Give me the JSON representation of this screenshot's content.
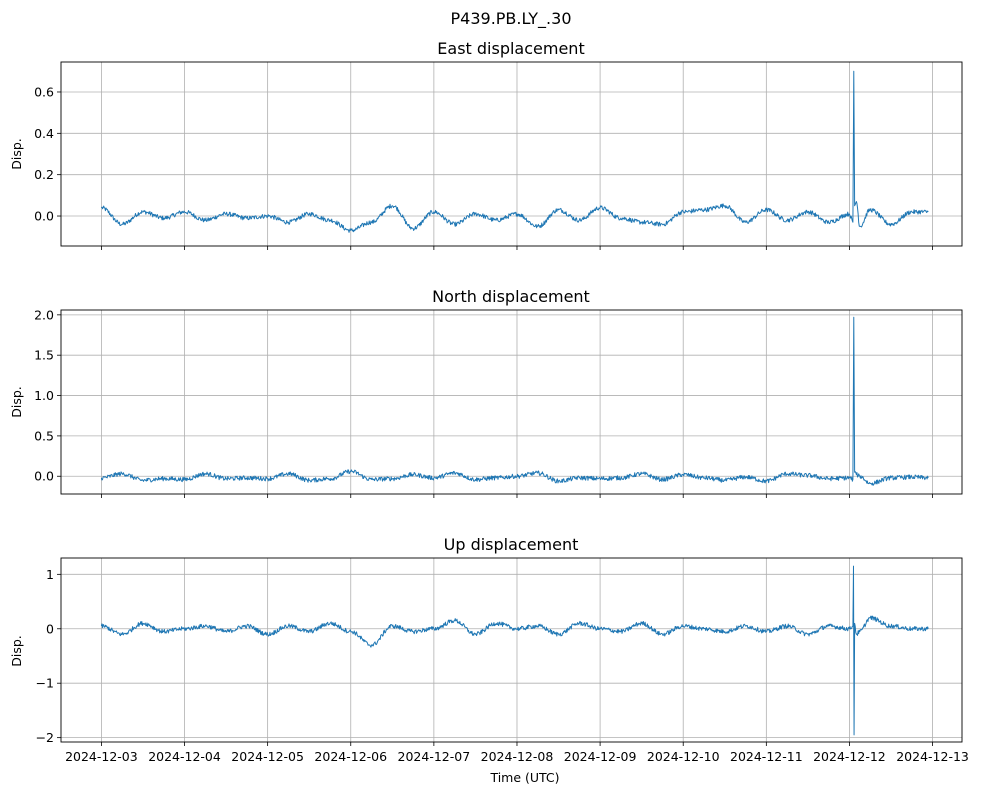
{
  "chart_data": {
    "type": "line",
    "title": "P439.PB.LY_.30",
    "xlabel": "Time (UTC)",
    "x_tick_labels": [
      "2024-12-03",
      "2024-12-04",
      "2024-12-05",
      "2024-12-06",
      "2024-12-07",
      "2024-12-08",
      "2024-12-09",
      "2024-12-10",
      "2024-12-11",
      "2024-12-12",
      "2024-12-13"
    ],
    "x_range": [
      "2024-12-02T12:20",
      "2024-12-13T08:30"
    ],
    "data_x_range": [
      "2024-12-03T00:00",
      "2024-12-12T22:45"
    ],
    "line_color": "#1f77b4",
    "grid": true,
    "panels": [
      {
        "title": "East displacement",
        "ylabel": "Disp.",
        "ylim": [
          -0.145,
          0.745
        ],
        "y_ticks": [
          0.0,
          0.2,
          0.4,
          0.6
        ],
        "y_tick_labels": [
          "0.0",
          "0.2",
          "0.4",
          "0.6"
        ],
        "series": {
          "x": [
            "2024-12-03T00:00",
            "2024-12-03T06:00",
            "2024-12-03T12:00",
            "2024-12-03T18:00",
            "2024-12-04T00:00",
            "2024-12-04T06:00",
            "2024-12-04T12:00",
            "2024-12-04T18:00",
            "2024-12-05T00:00",
            "2024-12-05T06:00",
            "2024-12-05T12:00",
            "2024-12-05T18:00",
            "2024-12-06T00:00",
            "2024-12-06T06:00",
            "2024-12-06T12:00",
            "2024-12-06T18:00",
            "2024-12-07T00:00",
            "2024-12-07T06:00",
            "2024-12-07T12:00",
            "2024-12-07T18:00",
            "2024-12-08T00:00",
            "2024-12-08T06:00",
            "2024-12-08T12:00",
            "2024-12-08T18:00",
            "2024-12-09T00:00",
            "2024-12-09T06:00",
            "2024-12-09T12:00",
            "2024-12-09T18:00",
            "2024-12-10T00:00",
            "2024-12-10T06:00",
            "2024-12-10T12:00",
            "2024-12-10T18:00",
            "2024-12-11T00:00",
            "2024-12-11T06:00",
            "2024-12-11T12:00",
            "2024-12-11T18:00",
            "2024-12-12T00:00",
            "2024-12-12T01:00",
            "2024-12-12T01:15",
            "2024-12-12T01:30",
            "2024-12-12T02:00",
            "2024-12-12T03:00",
            "2024-12-12T06:00",
            "2024-12-12T12:00",
            "2024-12-12T18:00",
            "2024-12-12T22:45"
          ],
          "y": [
            0.04,
            -0.04,
            0.02,
            -0.01,
            0.02,
            -0.02,
            0.01,
            -0.01,
            0.0,
            -0.03,
            0.01,
            -0.02,
            -0.07,
            -0.03,
            0.05,
            -0.06,
            0.02,
            -0.04,
            0.01,
            -0.02,
            0.01,
            -0.05,
            0.03,
            -0.02,
            0.04,
            -0.01,
            -0.03,
            -0.04,
            0.02,
            0.03,
            0.05,
            -0.03,
            0.03,
            -0.02,
            0.02,
            -0.03,
            0.01,
            -0.03,
            0.7,
            0.05,
            0.07,
            -0.05,
            0.03,
            -0.04,
            0.02,
            0.02
          ]
        }
      },
      {
        "title": "North displacement",
        "ylabel": "Disp.",
        "ylim": [
          -0.22,
          2.06
        ],
        "y_ticks": [
          0.0,
          0.5,
          1.0,
          1.5,
          2.0
        ],
        "y_tick_labels": [
          "0.0",
          "0.5",
          "1.0",
          "1.5",
          "2.0"
        ],
        "series": {
          "x": [
            "2024-12-03T00:00",
            "2024-12-03T06:00",
            "2024-12-03T12:00",
            "2024-12-03T18:00",
            "2024-12-04T00:00",
            "2024-12-04T06:00",
            "2024-12-04T12:00",
            "2024-12-04T18:00",
            "2024-12-05T00:00",
            "2024-12-05T06:00",
            "2024-12-05T12:00",
            "2024-12-05T18:00",
            "2024-12-06T00:00",
            "2024-12-06T06:00",
            "2024-12-06T12:00",
            "2024-12-06T18:00",
            "2024-12-07T00:00",
            "2024-12-07T06:00",
            "2024-12-07T12:00",
            "2024-12-07T18:00",
            "2024-12-08T00:00",
            "2024-12-08T06:00",
            "2024-12-08T12:00",
            "2024-12-08T18:00",
            "2024-12-09T00:00",
            "2024-12-09T06:00",
            "2024-12-09T12:00",
            "2024-12-09T18:00",
            "2024-12-10T00:00",
            "2024-12-10T06:00",
            "2024-12-10T12:00",
            "2024-12-10T18:00",
            "2024-12-11T00:00",
            "2024-12-11T06:00",
            "2024-12-11T12:00",
            "2024-12-11T18:00",
            "2024-12-12T00:00",
            "2024-12-12T01:00",
            "2024-12-12T01:15",
            "2024-12-12T01:30",
            "2024-12-12T02:00",
            "2024-12-12T03:00",
            "2024-12-12T06:00",
            "2024-12-12T12:00",
            "2024-12-12T18:00",
            "2024-12-12T22:45"
          ],
          "y": [
            -0.02,
            0.03,
            -0.05,
            -0.03,
            -0.04,
            0.03,
            -0.03,
            -0.02,
            -0.03,
            0.03,
            -0.05,
            -0.03,
            0.06,
            -0.04,
            -0.03,
            0.02,
            -0.02,
            0.04,
            -0.04,
            -0.02,
            0.0,
            0.04,
            -0.06,
            -0.02,
            -0.03,
            -0.02,
            0.03,
            -0.04,
            0.02,
            -0.02,
            -0.05,
            -0.01,
            -0.06,
            0.03,
            0.01,
            -0.03,
            -0.02,
            -0.04,
            1.97,
            0.05,
            0.02,
            0.0,
            -0.09,
            -0.02,
            -0.01,
            -0.02
          ]
        }
      },
      {
        "title": "Up displacement",
        "ylabel": "Disp.",
        "ylim": [
          -2.08,
          1.3
        ],
        "y_ticks": [
          -2,
          -1,
          0,
          1
        ],
        "y_tick_labels": [
          "−2",
          "−1",
          "0",
          "1"
        ],
        "series": {
          "x": [
            "2024-12-03T00:00",
            "2024-12-03T06:00",
            "2024-12-03T12:00",
            "2024-12-03T18:00",
            "2024-12-04T00:00",
            "2024-12-04T06:00",
            "2024-12-04T12:00",
            "2024-12-04T18:00",
            "2024-12-05T00:00",
            "2024-12-05T06:00",
            "2024-12-05T12:00",
            "2024-12-05T18:00",
            "2024-12-06T00:00",
            "2024-12-06T06:00",
            "2024-12-06T12:00",
            "2024-12-06T18:00",
            "2024-12-07T00:00",
            "2024-12-07T06:00",
            "2024-12-07T12:00",
            "2024-12-07T18:00",
            "2024-12-08T00:00",
            "2024-12-08T06:00",
            "2024-12-08T12:00",
            "2024-12-08T18:00",
            "2024-12-09T00:00",
            "2024-12-09T06:00",
            "2024-12-09T12:00",
            "2024-12-09T18:00",
            "2024-12-10T00:00",
            "2024-12-10T06:00",
            "2024-12-10T12:00",
            "2024-12-10T18:00",
            "2024-12-11T00:00",
            "2024-12-11T06:00",
            "2024-12-11T12:00",
            "2024-12-11T18:00",
            "2024-12-12T00:00",
            "2024-12-12T01:00",
            "2024-12-12T01:10",
            "2024-12-12T01:20",
            "2024-12-12T01:30",
            "2024-12-12T02:00",
            "2024-12-12T03:00",
            "2024-12-12T06:00",
            "2024-12-12T12:00",
            "2024-12-12T18:00",
            "2024-12-12T22:45"
          ],
          "y": [
            0.05,
            -0.1,
            0.1,
            -0.05,
            0.0,
            0.05,
            -0.05,
            0.05,
            -0.1,
            0.05,
            -0.05,
            0.1,
            -0.05,
            -0.3,
            0.05,
            -0.05,
            0.0,
            0.15,
            -0.1,
            0.1,
            0.0,
            0.05,
            -0.1,
            0.1,
            0.0,
            -0.05,
            0.1,
            -0.1,
            0.05,
            0.0,
            -0.05,
            0.05,
            -0.05,
            0.05,
            -0.1,
            0.05,
            0.0,
            0.05,
            1.15,
            -1.95,
            0.1,
            -0.1,
            -0.05,
            0.2,
            0.05,
            0.0,
            0.0
          ]
        }
      }
    ]
  }
}
